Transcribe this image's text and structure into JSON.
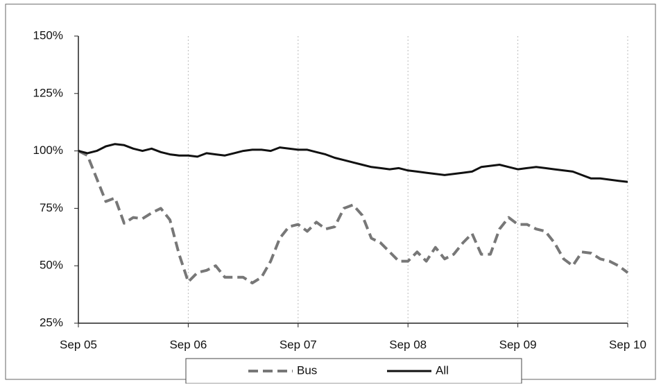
{
  "chart_data": {
    "type": "line",
    "categories": [
      "Sep 05",
      null,
      null,
      null,
      null,
      null,
      null,
      null,
      null,
      null,
      null,
      null,
      "Sep 06",
      null,
      null,
      null,
      null,
      null,
      null,
      null,
      null,
      null,
      null,
      null,
      "Sep 07",
      null,
      null,
      null,
      null,
      null,
      null,
      null,
      null,
      null,
      null,
      null,
      "Sep 08",
      null,
      null,
      null,
      null,
      null,
      null,
      null,
      null,
      null,
      null,
      null,
      "Sep 09",
      null,
      null,
      null,
      null,
      null,
      null,
      null,
      null,
      null,
      null,
      null,
      "Sep 10"
    ],
    "series": [
      {
        "name": "Bus",
        "color": "#777777",
        "dash": true,
        "values": [
          100,
          98,
          88,
          78,
          79.5,
          68.5,
          71,
          70.5,
          73,
          75,
          70,
          55,
          43,
          47,
          48,
          50,
          45,
          45,
          45,
          42.5,
          45,
          52,
          62,
          67,
          68,
          65,
          69,
          66,
          67,
          75,
          76.5,
          72,
          62,
          60,
          56,
          52,
          52,
          56,
          52,
          58,
          53,
          55,
          60,
          64,
          55,
          55,
          66,
          71,
          68,
          68,
          66,
          65,
          60,
          53,
          50,
          56,
          55.5,
          53,
          52,
          50,
          47
        ]
      },
      {
        "name": "All",
        "color": "#111111",
        "dash": false,
        "values": [
          100,
          99,
          100,
          102,
          103,
          102.5,
          101,
          100,
          101,
          99.5,
          98.5,
          98,
          98,
          97.5,
          99,
          98.5,
          98,
          99,
          100,
          100.5,
          100.5,
          100,
          101.5,
          101,
          100.5,
          100.5,
          99.5,
          98.5,
          97,
          96,
          95,
          94,
          93,
          92.5,
          92,
          92.5,
          91.5,
          91,
          90.5,
          90,
          89.5,
          90,
          90.5,
          91,
          93,
          93.5,
          94,
          93,
          92,
          92.5,
          93,
          92.5,
          92,
          91.5,
          91,
          89.5,
          88,
          88,
          87.5,
          87,
          86.5
        ]
      }
    ],
    "ylim": [
      25,
      150
    ],
    "yticks": [
      {
        "value": 25,
        "label": "25%"
      },
      {
        "value": 50,
        "label": "50%"
      },
      {
        "value": 75,
        "label": "75%"
      },
      {
        "value": 100,
        "label": "100%"
      },
      {
        "value": 125,
        "label": "125%"
      },
      {
        "value": 150,
        "label": "150%"
      }
    ],
    "grid": "x",
    "legend": "bottom"
  }
}
